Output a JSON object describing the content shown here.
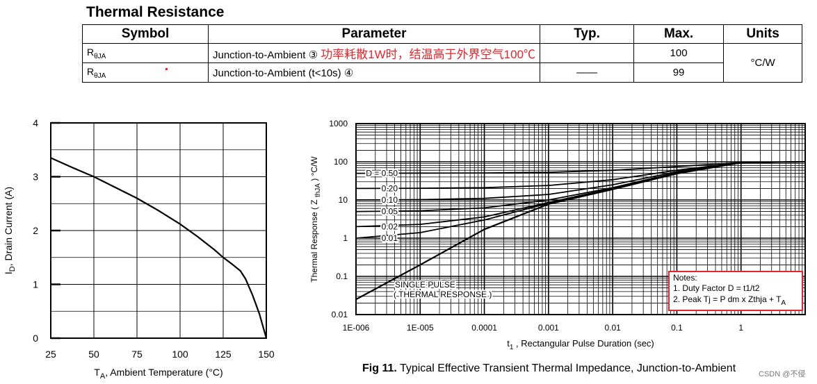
{
  "section_title": "Thermal Resistance",
  "table": {
    "headers": [
      "Symbol",
      "Parameter",
      "Typ.",
      "Max.",
      "Units"
    ],
    "rows": [
      {
        "symbol_main": "R",
        "symbol_sub": "θJA",
        "parameter": "Junction-to-Ambient ③",
        "annotation": "功率耗散1W时，结温高于外界空气100℃",
        "typ": "",
        "max": "100"
      },
      {
        "symbol_main": "R",
        "symbol_sub": "θJA",
        "parameter": "Junction-to-Ambient (t<10s) ④",
        "annotation": "",
        "typ": "——",
        "max": "99"
      }
    ],
    "units": "°C/W"
  },
  "chart_data": [
    {
      "type": "line",
      "title": "",
      "xlabel_main": "T",
      "xlabel_sub": "A",
      "xlabel_rest": ", Ambient Temperature (°C)",
      "ylabel_main": "I",
      "ylabel_sub": "D",
      "ylabel_rest": ", Drain Current (A)",
      "xlim": [
        25,
        150
      ],
      "ylim": [
        0,
        4
      ],
      "xticks": [
        "25",
        "50",
        "75",
        "100",
        "125",
        "150"
      ],
      "yticks": [
        "0",
        "1",
        "2",
        "3",
        "4"
      ],
      "grid": true,
      "series": [
        {
          "name": "ID",
          "x": [
            25,
            37.5,
            50,
            62.5,
            75,
            87.5,
            100,
            110,
            120,
            125,
            130,
            135,
            138,
            142,
            146,
            150
          ],
          "y": [
            3.35,
            3.17,
            3.0,
            2.8,
            2.6,
            2.37,
            2.12,
            1.89,
            1.64,
            1.5,
            1.38,
            1.25,
            1.1,
            0.8,
            0.45,
            0.0
          ]
        }
      ]
    },
    {
      "type": "line",
      "title": "Fig 11.  Typical Effective Transient Thermal Impedance, Junction-to-Ambient",
      "xlabel_main": "t",
      "xlabel_sub": "1",
      "xlabel_rest": " , Rectangular Pulse Duration (sec)",
      "ylabel_pre": "Thermal Response ( Z ",
      "ylabel_sub": "thJA",
      "ylabel_post": " ) °C/W",
      "x_scale": "log",
      "y_scale": "log",
      "xlim": [
        1e-06,
        10
      ],
      "ylim": [
        0.01,
        1000
      ],
      "xticks": [
        "1E-006",
        "1E-005",
        "0.0001",
        "0.001",
        "0.01",
        "0.1",
        "1"
      ],
      "yticks": [
        "0.01",
        "0.1",
        "1",
        "10",
        "100",
        "1000"
      ],
      "grid": true,
      "series": [
        {
          "name": "D = 0.50",
          "x": [
            1e-06,
            1e-05,
            0.0001,
            0.001,
            0.01,
            0.1,
            1,
            10
          ],
          "y": [
            50,
            50.5,
            51,
            53,
            60,
            75,
            95,
            100
          ]
        },
        {
          "name": "0.20",
          "x": [
            1e-06,
            1e-05,
            0.0001,
            0.001,
            0.01,
            0.1,
            1,
            10
          ],
          "y": [
            20,
            20.3,
            21,
            24,
            34,
            60,
            95,
            100
          ]
        },
        {
          "name": "0.10",
          "x": [
            1e-06,
            1e-05,
            0.0001,
            0.001,
            0.01,
            0.1,
            1,
            10
          ],
          "y": [
            10,
            10.2,
            11,
            14,
            25,
            55,
            95,
            100
          ]
        },
        {
          "name": "0.05",
          "x": [
            1e-06,
            1e-05,
            0.0001,
            0.001,
            0.01,
            0.1,
            1,
            10
          ],
          "y": [
            5,
            5.2,
            6.2,
            10,
            21,
            52,
            95,
            100
          ]
        },
        {
          "name": "0.02",
          "x": [
            1e-06,
            1e-05,
            0.0001,
            0.001,
            0.01,
            0.1,
            1,
            10
          ],
          "y": [
            2,
            2.3,
            3.6,
            8.6,
            20,
            50,
            95,
            100
          ]
        },
        {
          "name": "0.01",
          "x": [
            1e-06,
            1e-05,
            0.0001,
            0.001,
            0.01,
            0.1,
            1,
            10
          ],
          "y": [
            1,
            1.4,
            3.0,
            8.2,
            19.5,
            50,
            95,
            100
          ]
        },
        {
          "name": "SINGLE PULSE ( THERMAL RESPONSE )",
          "x": [
            1e-06,
            1e-05,
            0.0001,
            0.001,
            0.01,
            0.1,
            1,
            10
          ],
          "y": [
            0.025,
            0.2,
            1.7,
            7.8,
            19,
            49,
            95,
            100
          ]
        }
      ],
      "annotations": [
        {
          "text": "SINGLE PULSE"
        },
        {
          "text": "( THERMAL RESPONSE )"
        }
      ],
      "notes": {
        "title": "Notes:",
        "line1": "1. Duty Factor D = t1/t2",
        "line2_pre": "2. Peak Tj = P dm x Zthja + T",
        "line2_sub": "A"
      }
    }
  ],
  "caption_bold": "Fig 11.",
  "caption_rest": "  Typical Effective Transient Thermal Impedance, Junction-to-Ambient",
  "watermark": "CSDN @不侵",
  "colors": {
    "accent_red": "#e8242b"
  }
}
